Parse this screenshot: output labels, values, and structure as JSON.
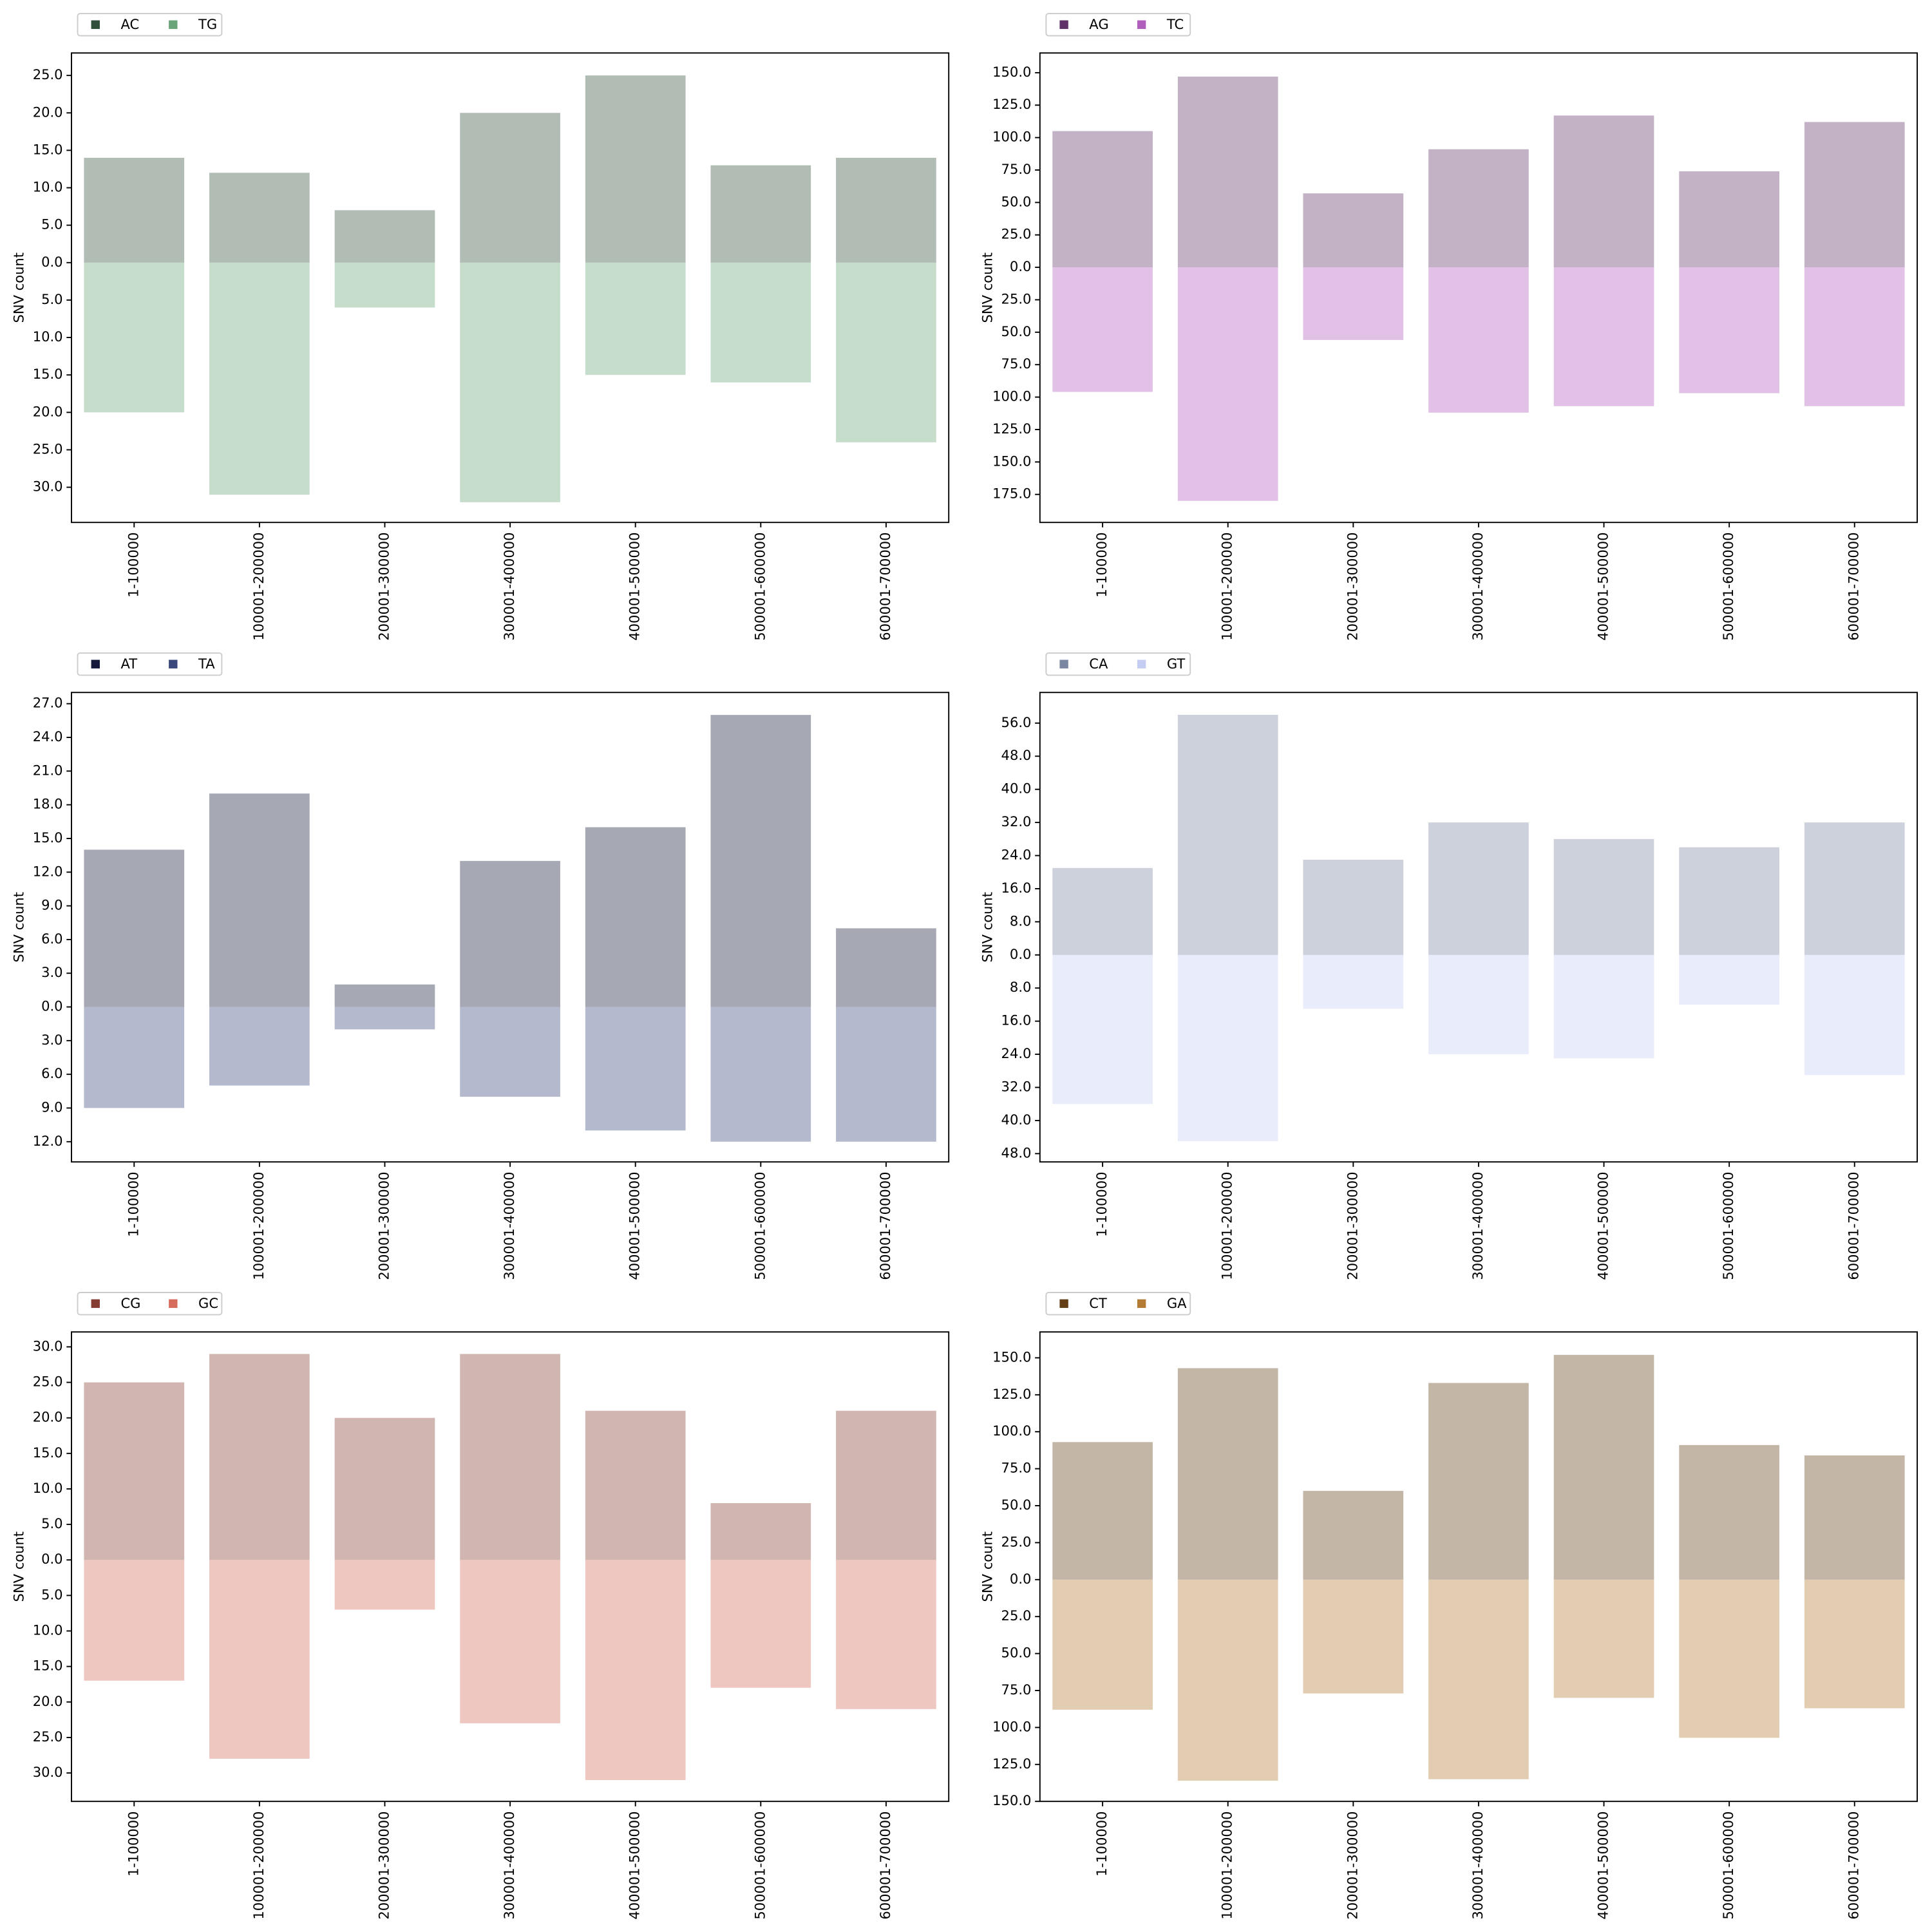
{
  "chart_data": [
    {
      "type": "bar",
      "ylabel": "SNV count",
      "categories": [
        "1-100000",
        "100001-200000",
        "200001-300000",
        "300001-400000",
        "400001-500000",
        "500001-600000",
        "600001-700000"
      ],
      "series": [
        {
          "name": "AC",
          "color": "#2f4f3a",
          "values": [
            14,
            12,
            7,
            20,
            25,
            13,
            14
          ]
        },
        {
          "name": "TG",
          "color": "#6aa57a",
          "values": [
            -20,
            -31,
            -6,
            -32,
            -15,
            -16,
            -24
          ]
        }
      ],
      "ylim": [
        -34.7,
        28.0
      ],
      "yticks": [
        {
          "value": 25,
          "label": "25.0"
        },
        {
          "value": 20,
          "label": "20.0"
        },
        {
          "value": 15,
          "label": "15.0"
        },
        {
          "value": 10,
          "label": "10.0"
        },
        {
          "value": 5,
          "label": "5.0"
        },
        {
          "value": 0,
          "label": "0.0"
        },
        {
          "value": -5,
          "label": "5.0"
        },
        {
          "value": -10,
          "label": "10.0"
        },
        {
          "value": -15,
          "label": "15.0"
        },
        {
          "value": -20,
          "label": "20.0"
        },
        {
          "value": -25,
          "label": "25.0"
        },
        {
          "value": -30,
          "label": "30.0"
        }
      ]
    },
    {
      "type": "bar",
      "ylabel": "SNV count",
      "categories": [
        "1-100000",
        "100001-200000",
        "200001-300000",
        "300001-400000",
        "400001-500000",
        "500001-600000",
        "600001-700000"
      ],
      "series": [
        {
          "name": "AG",
          "color": "#61326a",
          "values": [
            105,
            147,
            57,
            91,
            117,
            74,
            112
          ]
        },
        {
          "name": "TC",
          "color": "#b05fbd",
          "values": [
            -96,
            -180,
            -56,
            -112,
            -107,
            -97,
            -107
          ]
        }
      ],
      "ylim": [
        -196.6,
        165.2
      ],
      "yticks": [
        {
          "value": 150,
          "label": "150.0"
        },
        {
          "value": 125,
          "label": "125.0"
        },
        {
          "value": 100,
          "label": "100.0"
        },
        {
          "value": 75,
          "label": "75.0"
        },
        {
          "value": 50,
          "label": "50.0"
        },
        {
          "value": 25,
          "label": "25.0"
        },
        {
          "value": 0,
          "label": "0.0"
        },
        {
          "value": -25,
          "label": "25.0"
        },
        {
          "value": -50,
          "label": "50.0"
        },
        {
          "value": -75,
          "label": "75.0"
        },
        {
          "value": -100,
          "label": "100.0"
        },
        {
          "value": -125,
          "label": "125.0"
        },
        {
          "value": -150,
          "label": "150.0"
        },
        {
          "value": -175,
          "label": "175.0"
        }
      ]
    },
    {
      "type": "bar",
      "ylabel": "SNV count",
      "categories": [
        "1-100000",
        "100001-200000",
        "200001-300000",
        "300001-400000",
        "400001-500000",
        "500001-600000",
        "600001-700000"
      ],
      "series": [
        {
          "name": "AT",
          "color": "#151a3a",
          "values": [
            14,
            19,
            2,
            13,
            16,
            26,
            7
          ]
        },
        {
          "name": "TA",
          "color": "#3a477b",
          "values": [
            -9,
            -7,
            -2,
            -8,
            -11,
            -12,
            -12
          ]
        }
      ],
      "ylim": [
        -13.8,
        28.0
      ],
      "yticks": [
        {
          "value": 27,
          "label": "27.0"
        },
        {
          "value": 24,
          "label": "24.0"
        },
        {
          "value": 21,
          "label": "21.0"
        },
        {
          "value": 18,
          "label": "18.0"
        },
        {
          "value": 15,
          "label": "15.0"
        },
        {
          "value": 12,
          "label": "12.0"
        },
        {
          "value": 9,
          "label": "9.0"
        },
        {
          "value": 6,
          "label": "6.0"
        },
        {
          "value": 3,
          "label": "3.0"
        },
        {
          "value": 0,
          "label": "0.0"
        },
        {
          "value": -3,
          "label": "3.0"
        },
        {
          "value": -6,
          "label": "6.0"
        },
        {
          "value": -9,
          "label": "9.0"
        },
        {
          "value": -12,
          "label": "12.0"
        }
      ]
    },
    {
      "type": "bar",
      "ylabel": "SNV count",
      "categories": [
        "1-100000",
        "100001-200000",
        "200001-300000",
        "300001-400000",
        "400001-500000",
        "500001-600000",
        "600001-700000"
      ],
      "series": [
        {
          "name": "CA",
          "color": "#7b86a3",
          "values": [
            21,
            58,
            23,
            32,
            28,
            26,
            32
          ]
        },
        {
          "name": "GT",
          "color": "#c5cdf2",
          "values": [
            -36,
            -45,
            -13,
            -24,
            -25,
            -12,
            -29
          ]
        }
      ],
      "ylim": [
        -50.0,
        63.4
      ],
      "yticks": [
        {
          "value": 56,
          "label": "56.0"
        },
        {
          "value": 48,
          "label": "48.0"
        },
        {
          "value": 40,
          "label": "40.0"
        },
        {
          "value": 32,
          "label": "32.0"
        },
        {
          "value": 24,
          "label": "24.0"
        },
        {
          "value": 16,
          "label": "16.0"
        },
        {
          "value": 8,
          "label": "8.0"
        },
        {
          "value": 0,
          "label": "0.0"
        },
        {
          "value": -8,
          "label": "8.0"
        },
        {
          "value": -16,
          "label": "16.0"
        },
        {
          "value": -24,
          "label": "24.0"
        },
        {
          "value": -32,
          "label": "32.0"
        },
        {
          "value": -40,
          "label": "40.0"
        },
        {
          "value": -48,
          "label": "48.0"
        }
      ]
    },
    {
      "type": "bar",
      "ylabel": "SNV count",
      "categories": [
        "1-100000",
        "100001-200000",
        "200001-300000",
        "300001-400000",
        "400001-500000",
        "500001-600000",
        "600001-700000"
      ],
      "series": [
        {
          "name": "CG",
          "color": "#863c32",
          "values": [
            25,
            29,
            20,
            29,
            21,
            8,
            21
          ]
        },
        {
          "name": "GC",
          "color": "#d56c5c",
          "values": [
            -17,
            -28,
            -7,
            -23,
            -31,
            -18,
            -21
          ]
        }
      ],
      "ylim": [
        -34.0,
        32.1
      ],
      "yticks": [
        {
          "value": 30,
          "label": "30.0"
        },
        {
          "value": 25,
          "label": "25.0"
        },
        {
          "value": 20,
          "label": "20.0"
        },
        {
          "value": 15,
          "label": "15.0"
        },
        {
          "value": 10,
          "label": "10.0"
        },
        {
          "value": 5,
          "label": "5.0"
        },
        {
          "value": 0,
          "label": "0.0"
        },
        {
          "value": -5,
          "label": "5.0"
        },
        {
          "value": -10,
          "label": "10.0"
        },
        {
          "value": -15,
          "label": "15.0"
        },
        {
          "value": -20,
          "label": "20.0"
        },
        {
          "value": -25,
          "label": "25.0"
        },
        {
          "value": -30,
          "label": "30.0"
        }
      ]
    },
    {
      "type": "bar",
      "ylabel": "SNV count",
      "categories": [
        "1-100000",
        "100001-200000",
        "200001-300000",
        "300001-400000",
        "400001-500000",
        "500001-600000",
        "600001-700000"
      ],
      "series": [
        {
          "name": "CT",
          "color": "#643f15",
          "values": [
            93,
            143,
            60,
            133,
            152,
            91,
            84
          ]
        },
        {
          "name": "GA",
          "color": "#b37b34",
          "values": [
            -88,
            -136,
            -77,
            -135,
            -80,
            -107,
            -87
          ]
        }
      ],
      "ylim": [
        -150.0,
        167.5
      ],
      "yticks": [
        {
          "value": 150,
          "label": "150.0"
        },
        {
          "value": 125,
          "label": "125.0"
        },
        {
          "value": 100,
          "label": "100.0"
        },
        {
          "value": 75,
          "label": "75.0"
        },
        {
          "value": 50,
          "label": "50.0"
        },
        {
          "value": 25,
          "label": "25.0"
        },
        {
          "value": 0,
          "label": "0.0"
        },
        {
          "value": -25,
          "label": "25.0"
        },
        {
          "value": -50,
          "label": "50.0"
        },
        {
          "value": -75,
          "label": "75.0"
        },
        {
          "value": -100,
          "label": "100.0"
        },
        {
          "value": -125,
          "label": "125.0"
        },
        {
          "value": -150,
          "label": "150.0"
        }
      ]
    }
  ]
}
